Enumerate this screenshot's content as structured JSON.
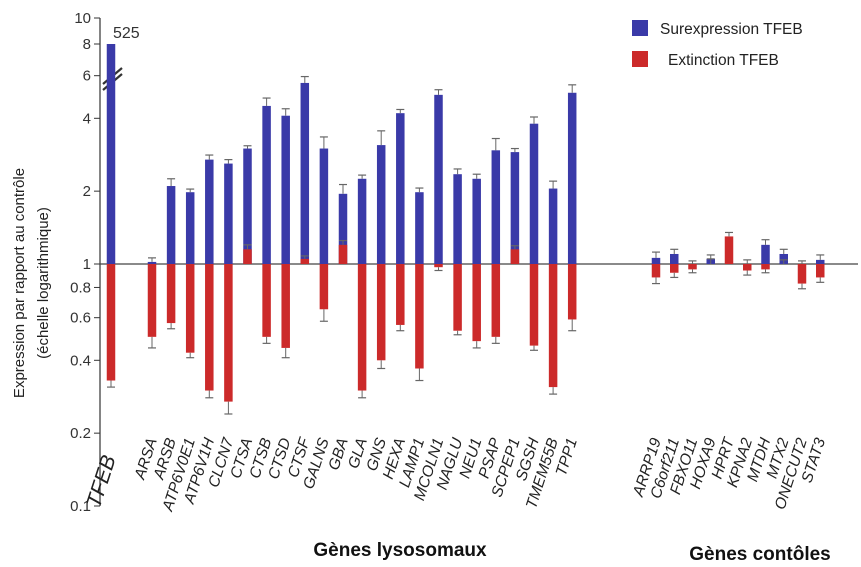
{
  "chart_data": {
    "type": "bar",
    "title": "",
    "ylabel_line1": "Expression par rapport au contrôle",
    "ylabel_line2": "(échelle logarithmique)",
    "yscale": "log",
    "ylim": [
      0.1,
      10
    ],
    "yticks": [
      0.1,
      0.2,
      0.4,
      0.6,
      0.8,
      1,
      2,
      4,
      6,
      8,
      10
    ],
    "ytick_labels": [
      "0.1",
      "0.2",
      "0.4",
      "0.6",
      "0.8",
      "1",
      "2",
      "4",
      "6",
      "8",
      "10"
    ],
    "baseline": 1,
    "axis_break": "between 6 and 8",
    "legend": {
      "position": "top-right"
    },
    "colors": {
      "overexpression": "#3a3aa8",
      "knockdown": "#cc2a2a"
    },
    "annotations": [
      {
        "text": "525",
        "category": "TFEB"
      }
    ],
    "groups": [
      {
        "title": "Gènes lysosomaux",
        "start": 0,
        "end": 25
      },
      {
        "title": "Gènes contôles",
        "start": 26,
        "end": 35
      }
    ],
    "categories": [
      "TFEB",
      "ARSA",
      "ARSB",
      "ATP6V0E1",
      "ATP6V1H",
      "CLCN7",
      "CTSA",
      "CTSB",
      "CTSD",
      "CTSF",
      "GALNS",
      "GBA",
      "GLA",
      "GNS",
      "HEXA",
      "LAMP1",
      "MCOLN1",
      "NAGLU",
      "NEU1",
      "PSAP",
      "SCPEP1",
      "SGSH",
      "TMEM55B",
      "TPP1",
      "ARRP19",
      "C6orf211",
      "FBXO11",
      "HOXA9",
      "HPRT",
      "KPNA2",
      "MTDH",
      "MTX2",
      "ONECUT2",
      "STAT3"
    ],
    "series": [
      {
        "name": "Surexpression TFEB",
        "values": [
          525,
          1.02,
          2.1,
          1.98,
          2.7,
          2.6,
          3.0,
          4.5,
          4.1,
          5.6,
          3.0,
          1.95,
          2.25,
          3.1,
          4.2,
          1.98,
          5.0,
          2.35,
          2.25,
          2.95,
          2.9,
          3.8,
          2.05,
          5.1,
          1.06,
          1.1,
          1.0,
          1.05,
          1.0,
          1.0,
          1.2,
          1.1,
          1.0,
          1.04
        ],
        "errors": [
          0,
          0.04,
          0.15,
          0.06,
          0.12,
          0.1,
          0.08,
          0.35,
          0.28,
          0.35,
          0.35,
          0.18,
          0.08,
          0.45,
          0.15,
          0.08,
          0.25,
          0.12,
          0.1,
          0.35,
          0.1,
          0.25,
          0.15,
          0.4,
          0.06,
          0.05,
          0.03,
          0.04,
          0.02,
          0.04,
          0.06,
          0.05,
          0.03,
          0.05
        ]
      },
      {
        "name": "Extinction TFEB",
        "values": [
          0.33,
          0.5,
          0.57,
          0.43,
          0.3,
          0.27,
          1.15,
          0.5,
          0.45,
          1.05,
          0.65,
          1.2,
          0.3,
          0.4,
          0.56,
          0.37,
          0.97,
          0.53,
          0.48,
          0.5,
          1.15,
          0.46,
          0.31,
          0.59,
          0.88,
          0.92,
          0.95,
          1.0,
          1.3,
          0.94,
          0.95,
          1.0,
          0.83,
          0.88
        ],
        "errors": [
          0.02,
          0.05,
          0.03,
          0.02,
          0.02,
          0.03,
          0.05,
          0.03,
          0.04,
          0.03,
          0.07,
          0.05,
          0.02,
          0.03,
          0.03,
          0.04,
          0.03,
          0.02,
          0.03,
          0.03,
          0.04,
          0.02,
          0.02,
          0.06,
          0.05,
          0.04,
          0.03,
          0.05,
          0.05,
          0.04,
          0.03,
          0.04,
          0.04,
          0.04
        ]
      }
    ]
  }
}
